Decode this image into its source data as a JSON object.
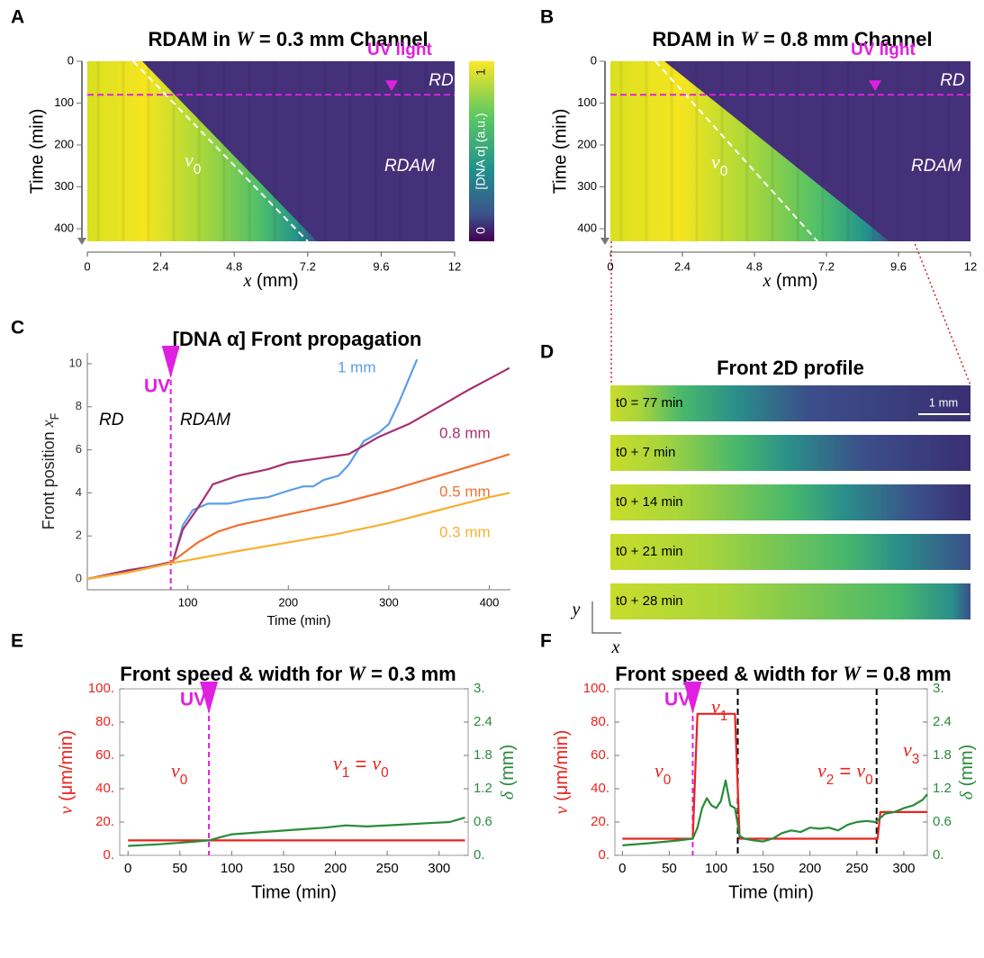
{
  "chart_data": [
    {
      "type": "heatmap",
      "panel": "A",
      "title": [
        {
          "t": "RDAM in "
        },
        {
          "i": "W"
        },
        {
          "t": " = 0.3 mm Channel"
        }
      ],
      "xlabel": [
        {
          "i": "x"
        },
        {
          "t": " (mm)"
        }
      ],
      "ylabel": "Time (min)",
      "xlim": [
        0,
        12
      ],
      "xticks": [
        0,
        2.4,
        4.8,
        7.2,
        9.6,
        12
      ],
      "ylim": [
        0,
        430
      ],
      "yticks": [
        0,
        100,
        200,
        300,
        400
      ],
      "uv_time": 80,
      "reference_line": {
        "x": [
          1.5,
          7.2
        ],
        "y": [
          0,
          430
        ]
      },
      "annotations": {
        "uv": "UV light",
        "rd": "RD",
        "rdam": "RDAM",
        "front": [
          {
            "i": "v"
          },
          {
            "sub": "0"
          }
        ]
      },
      "colorbar": {
        "label": "[DNA α] (a.u.)",
        "lim": [
          0,
          1
        ],
        "ticks": [
          0,
          1
        ]
      }
    },
    {
      "type": "heatmap",
      "panel": "B",
      "title": [
        {
          "t": "RDAM in "
        },
        {
          "i": "W"
        },
        {
          "t": " = 0.8 mm Channel"
        }
      ],
      "xlabel": [
        {
          "i": "x"
        },
        {
          "t": " (mm)"
        }
      ],
      "ylabel": "Time (min)",
      "xlim": [
        0,
        12
      ],
      "xticks": [
        0,
        2.4,
        4.8,
        7.2,
        9.6,
        12
      ],
      "ylim": [
        0,
        430
      ],
      "yticks": [
        0,
        100,
        200,
        300,
        400
      ],
      "uv_time": 80,
      "reference_line": {
        "x": [
          1.5,
          6.9
        ],
        "y": [
          0,
          430
        ]
      },
      "annotations": {
        "uv": "UV light",
        "rd": "RD",
        "rdam": "RDAM",
        "front": [
          {
            "i": "v"
          },
          {
            "sub": "0"
          }
        ]
      }
    },
    {
      "type": "line",
      "panel": "C",
      "title": "[DNA α] Front propagation",
      "xlabel": "Time (min)",
      "ylabel": [
        {
          "t": "Front position "
        },
        {
          "i": "x"
        },
        {
          "sub": "F"
        }
      ],
      "xlim": [
        0,
        421
      ],
      "xticks": [
        100,
        200,
        300,
        400
      ],
      "ylim": [
        -0.5,
        10.5
      ],
      "yticks": [
        0,
        2,
        4,
        6,
        8,
        10
      ],
      "uv_time": 83,
      "annotations": {
        "uv": "UV",
        "rd": "RD",
        "rdam": "RDAM"
      },
      "series": [
        {
          "name": "1 mm",
          "color": "#5a9ee8",
          "x": [
            0,
            20,
            40,
            60,
            80,
            85,
            95,
            105,
            120,
            140,
            160,
            180,
            200,
            215,
            225,
            235,
            250,
            260,
            275,
            290,
            300,
            310,
            320,
            328
          ],
          "values": [
            0,
            0.2,
            0.4,
            0.55,
            0.7,
            0.75,
            2.5,
            3.2,
            3.5,
            3.5,
            3.7,
            3.8,
            4.1,
            4.3,
            4.3,
            4.6,
            4.8,
            5.3,
            6.4,
            6.8,
            7.2,
            8.2,
            9.3,
            10.2
          ]
        },
        {
          "name": "0.8 mm",
          "color": "#a6306e",
          "x": [
            0,
            20,
            40,
            60,
            80,
            85,
            95,
            110,
            125,
            150,
            180,
            200,
            230,
            260,
            290,
            320,
            350,
            380,
            400,
            420
          ],
          "values": [
            0,
            0.2,
            0.4,
            0.55,
            0.75,
            0.8,
            2.3,
            3.3,
            4.4,
            4.8,
            5.1,
            5.4,
            5.6,
            5.8,
            6.6,
            7.2,
            8.0,
            8.8,
            9.3,
            9.8
          ]
        },
        {
          "name": "0.5 mm",
          "color": "#f07030",
          "x": [
            0,
            40,
            80,
            90,
            110,
            130,
            150,
            200,
            250,
            300,
            350,
            400,
            420
          ],
          "values": [
            0,
            0.3,
            0.7,
            1.0,
            1.7,
            2.2,
            2.5,
            3.0,
            3.5,
            4.1,
            4.8,
            5.5,
            5.8
          ]
        },
        {
          "name": "0.3 mm",
          "color": "#f8b030",
          "x": [
            0,
            40,
            80,
            150,
            200,
            250,
            300,
            350,
            400,
            420
          ],
          "values": [
            0,
            0.3,
            0.7,
            1.3,
            1.7,
            2.1,
            2.6,
            3.2,
            3.8,
            4.0
          ]
        }
      ]
    },
    {
      "type": "image",
      "panel": "D",
      "title": "Front 2D profile",
      "frames": [
        "t0 = 77 min",
        "t0 + 7 min",
        "t0 + 14 min",
        "t0 + 21 min",
        "t0 + 28 min"
      ],
      "scale_bar": "1 mm",
      "axis_labels": {
        "y": [
          {
            "i": "y"
          }
        ],
        "x": [
          {
            "i": "x"
          }
        ]
      }
    },
    {
      "type": "line",
      "panel": "E",
      "title": [
        {
          "t": "Front speed & width for "
        },
        {
          "i": "W"
        },
        {
          "t": " = 0.3 mm"
        }
      ],
      "xlabel": "Time (min)",
      "ylabel": [
        {
          "i": "v"
        },
        {
          "t": " (μm/min)"
        }
      ],
      "y2label": [
        {
          "i": "δ"
        },
        {
          "t": " (mm)"
        }
      ],
      "xlim": [
        -8,
        328
      ],
      "xticks": [
        0,
        50,
        100,
        150,
        200,
        250,
        300
      ],
      "ylim": [
        0,
        100
      ],
      "yticks": [
        {
          "value": 0,
          "label": "0."
        },
        {
          "value": 20,
          "label": "20."
        },
        {
          "value": 40,
          "label": "40."
        },
        {
          "value": 60,
          "label": "60."
        },
        {
          "value": 80,
          "label": "80."
        },
        {
          "value": 100,
          "label": "100."
        }
      ],
      "y2lim": [
        0,
        3
      ],
      "y2ticks": [
        {
          "value": 0,
          "label": "0."
        },
        0.6,
        1.2,
        1.8,
        2.4,
        {
          "value": 3,
          "label": "3."
        }
      ],
      "uv_time": 78,
      "annotations": {
        "uv": "UV",
        "v0": [
          {
            "i": "v"
          },
          {
            "sub": "0"
          }
        ],
        "v1": [
          {
            "i": "v"
          },
          {
            "sub": "1"
          },
          {
            "t": " = "
          },
          {
            "i": "v"
          },
          {
            "sub": "0"
          }
        ]
      },
      "series": [
        {
          "color": "#e8231e",
          "x": [
            0,
            325
          ],
          "values": [
            9,
            9
          ]
        },
        {
          "color": "#2a8a3a",
          "axis": "y2",
          "x": [
            0,
            30,
            60,
            78,
            90,
            100,
            130,
            160,
            190,
            210,
            230,
            260,
            290,
            310,
            325
          ],
          "values": [
            0.17,
            0.2,
            0.24,
            0.27,
            0.33,
            0.38,
            0.42,
            0.46,
            0.5,
            0.54,
            0.52,
            0.55,
            0.58,
            0.6,
            0.68
          ]
        }
      ]
    },
    {
      "type": "line",
      "panel": "F",
      "title": [
        {
          "t": "Front speed & width for "
        },
        {
          "i": "W"
        },
        {
          "t": " = 0.8 mm"
        }
      ],
      "xlabel": "Time (min)",
      "ylabel": [
        {
          "i": "v"
        },
        {
          "t": " (μm/min)"
        }
      ],
      "y2label": [
        {
          "i": "δ"
        },
        {
          "t": " (mm)"
        }
      ],
      "xlim": [
        -8,
        325
      ],
      "xticks": [
        0,
        50,
        100,
        150,
        200,
        250,
        300
      ],
      "ylim": [
        0,
        100
      ],
      "yticks": [
        {
          "value": 0,
          "label": "0."
        },
        {
          "value": 20,
          "label": "20."
        },
        {
          "value": 40,
          "label": "40."
        },
        {
          "value": 60,
          "label": "60."
        },
        {
          "value": 80,
          "label": "80."
        },
        {
          "value": 100,
          "label": "100."
        }
      ],
      "y2lim": [
        0,
        3
      ],
      "y2ticks": [
        {
          "value": 0,
          "label": "0."
        },
        0.6,
        1.2,
        1.8,
        2.4,
        {
          "value": 3,
          "label": "3."
        }
      ],
      "uv_time": 75,
      "phase_lines": [
        123,
        271
      ],
      "annotations": {
        "uv": "UV",
        "v1": [
          {
            "i": "v"
          },
          {
            "sub": "1"
          }
        ],
        "v0": [
          {
            "i": "v"
          },
          {
            "sub": "0"
          }
        ],
        "v2": [
          {
            "i": "v"
          },
          {
            "sub": "2"
          },
          {
            "t": " = "
          },
          {
            "i": "v"
          },
          {
            "sub": "0"
          }
        ],
        "v3": [
          {
            "i": "v"
          },
          {
            "sub": "3"
          }
        ]
      },
      "series": [
        {
          "color": "#e8231e",
          "x": [
            0,
            75,
            80,
            120,
            125,
            272,
            275,
            325
          ],
          "values": [
            10,
            10,
            85,
            85,
            10,
            10,
            26,
            26
          ]
        },
        {
          "color": "#2a8a3a",
          "axis": "y2",
          "x": [
            0,
            30,
            60,
            75,
            80,
            85,
            90,
            95,
            100,
            105,
            110,
            115,
            120,
            125,
            130,
            140,
            150,
            160,
            170,
            180,
            190,
            200,
            210,
            220,
            230,
            240,
            250,
            260,
            270,
            280,
            290,
            300,
            310,
            320,
            325
          ],
          "values": [
            0.18,
            0.22,
            0.27,
            0.3,
            0.5,
            0.85,
            1.03,
            0.9,
            0.85,
            0.98,
            1.35,
            0.9,
            0.85,
            0.35,
            0.3,
            0.27,
            0.25,
            0.3,
            0.4,
            0.45,
            0.42,
            0.5,
            0.48,
            0.5,
            0.45,
            0.55,
            0.6,
            0.62,
            0.6,
            0.75,
            0.78,
            0.85,
            0.9,
            1.0,
            1.1
          ]
        }
      ]
    }
  ]
}
